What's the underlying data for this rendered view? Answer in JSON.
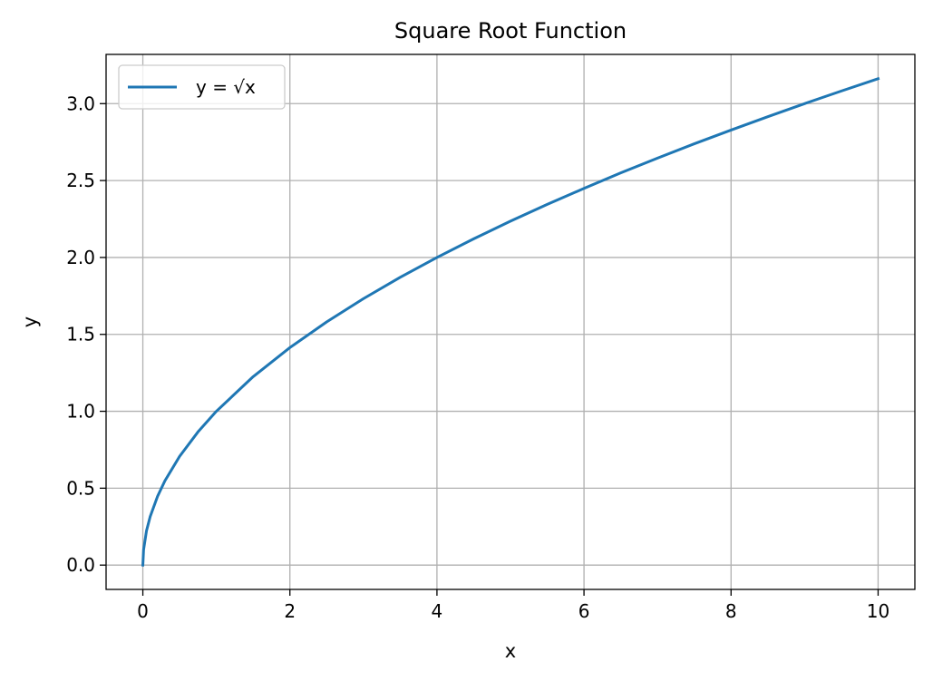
{
  "chart_data": {
    "type": "line",
    "title": "Square Root Function",
    "xlabel": "x",
    "ylabel": "y",
    "xlim": [
      -0.5,
      10.5
    ],
    "ylim": [
      -0.158,
      3.32
    ],
    "x_ticks": [
      0,
      2,
      4,
      6,
      8,
      10
    ],
    "y_ticks": [
      0.0,
      0.5,
      1.0,
      1.5,
      2.0,
      2.5,
      3.0
    ],
    "x_tick_labels": [
      "0",
      "2",
      "4",
      "6",
      "8",
      "10"
    ],
    "y_tick_labels": [
      "0.0",
      "0.5",
      "1.0",
      "1.5",
      "2.0",
      "2.5",
      "3.0"
    ],
    "grid": true,
    "legend_position": "top-left",
    "series": [
      {
        "name": "y = √x",
        "color": "#1f77b4",
        "x": [
          0,
          0.01,
          0.05,
          0.1,
          0.2,
          0.3,
          0.5,
          0.75,
          1,
          1.5,
          2,
          2.5,
          3,
          3.5,
          4,
          4.5,
          5,
          5.5,
          6,
          6.5,
          7,
          7.5,
          8,
          8.5,
          9,
          9.5,
          10
        ],
        "y": [
          0,
          0.1,
          0.224,
          0.316,
          0.447,
          0.548,
          0.707,
          0.866,
          1.0,
          1.225,
          1.414,
          1.581,
          1.732,
          1.871,
          2.0,
          2.121,
          2.236,
          2.345,
          2.449,
          2.55,
          2.646,
          2.739,
          2.828,
          2.915,
          3.0,
          3.082,
          3.162
        ]
      }
    ]
  }
}
